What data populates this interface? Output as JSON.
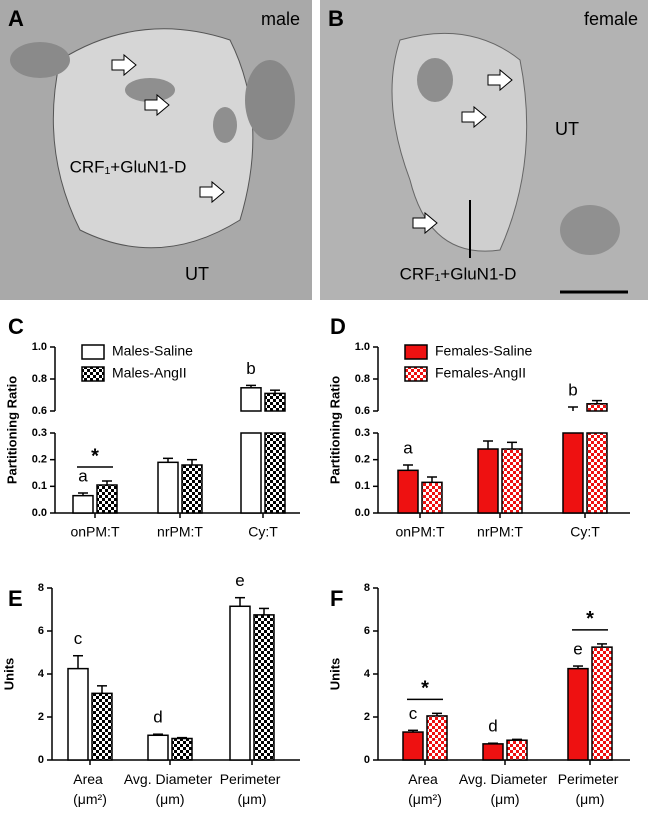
{
  "micrographs": [
    {
      "panel": "A",
      "sex": "male",
      "labels": [
        "CRF₁+GluN1-D",
        "UT"
      ]
    },
    {
      "panel": "B",
      "sex": "female",
      "labels": [
        "UT",
        "CRF₁+GluN1-D"
      ]
    }
  ],
  "chart_data": [
    {
      "type": "bar",
      "panel": "C",
      "ylabel": "Partitioning Ratio",
      "categories": [
        "onPM:T",
        "nrPM:T",
        "Cy:T"
      ],
      "series": [
        {
          "name": "Males-Saline",
          "color": "#ffffff",
          "pattern": "solid",
          "values": [
            0.065,
            0.19,
            0.745
          ],
          "errors": [
            0.01,
            0.015,
            0.015
          ]
        },
        {
          "name": "Males-AngII",
          "color": "#000000",
          "pattern": "checker",
          "values": [
            0.105,
            0.18,
            0.71
          ],
          "errors": [
            0.015,
            0.02,
            0.02
          ]
        }
      ],
      "ylim_segments": [
        [
          0,
          0.3
        ],
        [
          0.6,
          1.0
        ]
      ],
      "yticks": [
        {
          "value": 0,
          "label": "0.0"
        },
        0.1,
        0.2,
        0.3,
        0.6,
        0.8,
        {
          "value": 1,
          "label": "1.0"
        }
      ],
      "annotations": [
        {
          "text": "a",
          "category": 0,
          "series": 0
        },
        {
          "text": "*",
          "category": 0
        },
        {
          "text": "b",
          "category": 2,
          "series": 0
        }
      ]
    },
    {
      "type": "bar",
      "panel": "D",
      "ylabel": "Partitioning Ratio",
      "categories": [
        "onPM:T",
        "nrPM:T",
        "Cy:T"
      ],
      "series": [
        {
          "name": "Females-Saline",
          "color": "#ee1111",
          "pattern": "solid",
          "values": [
            0.16,
            0.24,
            0.6
          ],
          "errors": [
            0.02,
            0.03,
            0.025
          ]
        },
        {
          "name": "Females-AngII",
          "color": "#ee1111",
          "pattern": "checker",
          "values": [
            0.115,
            0.24,
            0.645
          ],
          "errors": [
            0.02,
            0.025,
            0.02
          ]
        }
      ],
      "ylim_segments": [
        [
          0,
          0.3
        ],
        [
          0.6,
          1.0
        ]
      ],
      "yticks": [
        {
          "value": 0,
          "label": "0.0"
        },
        0.1,
        0.2,
        0.3,
        0.6,
        0.8,
        {
          "value": 1,
          "label": "1.0"
        }
      ],
      "annotations": [
        {
          "text": "a",
          "category": 0,
          "series": 0
        },
        {
          "text": "b",
          "category": 2,
          "series": 0
        }
      ]
    },
    {
      "type": "bar",
      "panel": "E",
      "ylabel": "Units",
      "categories": [
        "Area (μm²)",
        "Avg. Diameter (μm)",
        "Perimeter (μm)"
      ],
      "series": [
        {
          "name": "Males-Saline",
          "color": "#ffffff",
          "pattern": "solid",
          "values": [
            4.25,
            1.15,
            7.15
          ],
          "errors": [
            0.6,
            0.05,
            0.4
          ]
        },
        {
          "name": "Males-AngII",
          "color": "#000000",
          "pattern": "checker",
          "values": [
            3.1,
            1.0,
            6.75
          ],
          "errors": [
            0.35,
            0.04,
            0.3
          ]
        }
      ],
      "ylim_segments": [
        [
          0,
          8
        ]
      ],
      "yticks": [
        0,
        2,
        4,
        6,
        8
      ],
      "annotations": [
        {
          "text": "c",
          "category": 0,
          "series": 0
        },
        {
          "text": "d",
          "category": 1,
          "series": 0
        },
        {
          "text": "e",
          "category": 2,
          "series": 0
        }
      ]
    },
    {
      "type": "bar",
      "panel": "F",
      "ylabel": "Units",
      "categories": [
        "Area (μm²)",
        "Avg. Diameter (μm)",
        "Perimeter (μm)"
      ],
      "series": [
        {
          "name": "Females-Saline",
          "color": "#ee1111",
          "pattern": "solid",
          "values": [
            1.3,
            0.75,
            4.25
          ],
          "errors": [
            0.08,
            0.03,
            0.12
          ]
        },
        {
          "name": "Females-AngII",
          "color": "#ee1111",
          "pattern": "checker",
          "values": [
            2.05,
            0.92,
            5.25
          ],
          "errors": [
            0.12,
            0.04,
            0.15
          ]
        }
      ],
      "ylim_segments": [
        [
          0,
          8
        ]
      ],
      "yticks": [
        0,
        2,
        4,
        6,
        8
      ],
      "annotations": [
        {
          "text": "c",
          "category": 0,
          "series": 0
        },
        {
          "text": "*",
          "category": 0
        },
        {
          "text": "d",
          "category": 1,
          "series": 0
        },
        {
          "text": "e",
          "category": 2,
          "series": 0
        },
        {
          "text": "*",
          "category": 2
        }
      ]
    }
  ]
}
